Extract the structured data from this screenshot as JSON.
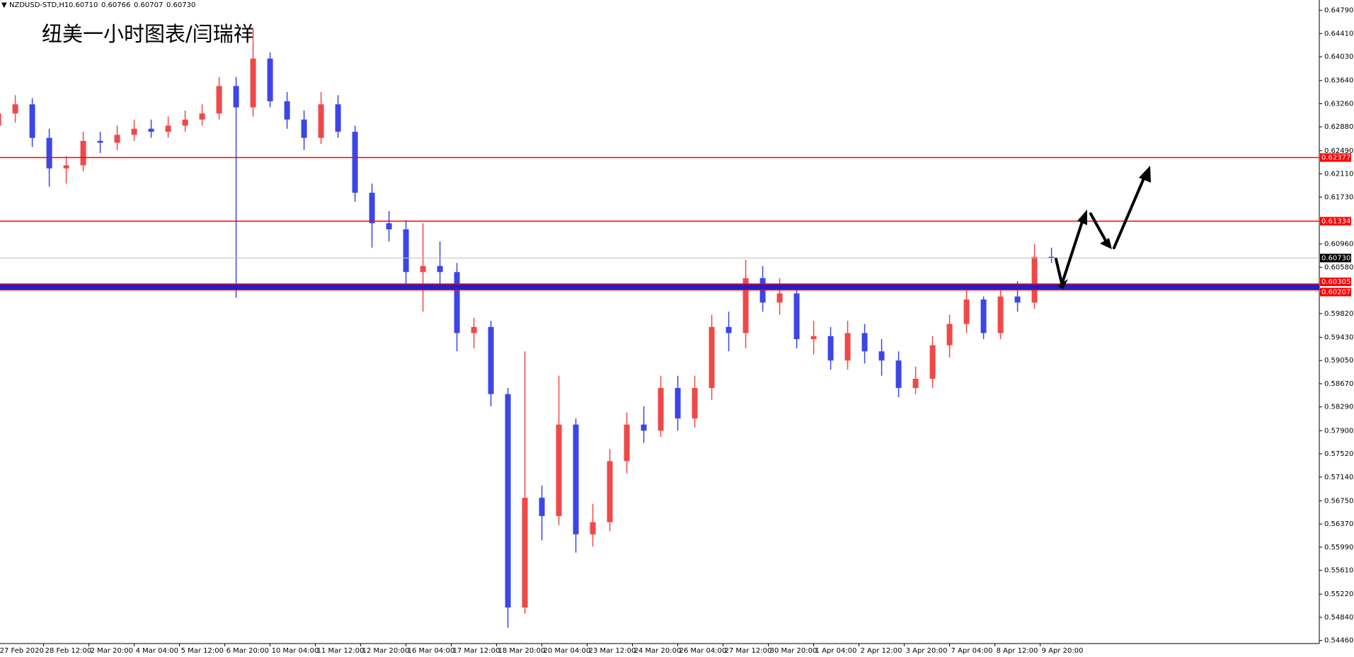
{
  "chart_data": {
    "type": "candlestick",
    "title": "纽美一小时图表/闫瑞祥",
    "symbol": "NZDUSD-STD,H1",
    "quote": [
      "0.60710",
      "0.60766",
      "0.60707",
      "0.60730"
    ],
    "up_color": "#f04848",
    "down_color": "#3c46e6",
    "xlim": [
      1.2,
      933.2
    ],
    "ylim": [
      0.5441,
      0.6496
    ],
    "x": [
      0,
      12,
      24,
      36,
      48,
      60,
      72,
      84,
      96,
      108,
      120,
      132,
      144,
      156,
      168,
      180,
      192,
      204,
      216,
      228,
      240,
      252,
      264,
      276,
      288,
      300,
      312,
      324,
      336,
      348,
      360,
      372,
      384,
      396,
      408,
      420,
      432,
      444,
      456,
      468,
      480,
      492,
      504,
      516,
      528,
      540,
      552,
      564,
      576,
      588,
      600,
      612,
      624,
      636,
      648,
      660,
      672,
      684,
      696,
      708,
      720,
      732,
      744
    ],
    "open": [
      0.629,
      0.631,
      0.6325,
      0.627,
      0.622,
      0.6225,
      0.6265,
      0.6262,
      0.6275,
      0.6285,
      0.628,
      0.629,
      0.63,
      0.631,
      0.6355,
      0.632,
      0.64,
      0.633,
      0.63,
      0.627,
      0.6325,
      0.628,
      0.618,
      0.613,
      0.612,
      0.605,
      0.606,
      0.605,
      0.595,
      0.596,
      0.585,
      0.55,
      0.568,
      0.565,
      0.58,
      0.562,
      0.564,
      0.574,
      0.58,
      0.579,
      0.586,
      0.581,
      0.586,
      0.596,
      0.595,
      0.604,
      0.6,
      0.6015,
      0.594,
      0.5945,
      0.5905,
      0.595,
      0.592,
      0.5905,
      0.586,
      0.5875,
      0.593,
      0.5965,
      0.6005,
      0.595,
      0.601,
      0.6,
      0.6075
    ],
    "high": [
      0.633,
      0.634,
      0.6335,
      0.6285,
      0.624,
      0.628,
      0.628,
      0.629,
      0.63,
      0.63,
      0.6305,
      0.6315,
      0.6325,
      0.637,
      0.637,
      0.645,
      0.641,
      0.6345,
      0.6315,
      0.6345,
      0.634,
      0.629,
      0.6195,
      0.615,
      0.6135,
      0.613,
      0.61,
      0.6065,
      0.5975,
      0.597,
      0.586,
      0.592,
      0.57,
      0.588,
      0.581,
      0.567,
      0.576,
      0.582,
      0.583,
      0.588,
      0.588,
      0.588,
      0.598,
      0.5985,
      0.607,
      0.606,
      0.604,
      0.603,
      0.597,
      0.596,
      0.597,
      0.5965,
      0.594,
      0.592,
      0.5895,
      0.5945,
      0.598,
      0.602,
      0.601,
      0.603,
      0.6035,
      0.6096,
      0.609
    ],
    "low": [
      0.6275,
      0.6295,
      0.6255,
      0.619,
      0.6195,
      0.6215,
      0.6245,
      0.625,
      0.6265,
      0.627,
      0.627,
      0.628,
      0.629,
      0.63,
      0.6008,
      0.6305,
      0.632,
      0.6285,
      0.625,
      0.626,
      0.627,
      0.6165,
      0.609,
      0.61,
      0.603,
      0.5985,
      0.602,
      0.592,
      0.5925,
      0.583,
      0.5467,
      0.549,
      0.561,
      0.5635,
      0.559,
      0.56,
      0.5625,
      0.572,
      0.577,
      0.578,
      0.579,
      0.5795,
      0.584,
      0.592,
      0.5925,
      0.5985,
      0.598,
      0.5925,
      0.5915,
      0.589,
      0.589,
      0.59,
      0.588,
      0.5845,
      0.585,
      0.586,
      0.591,
      0.595,
      0.594,
      0.594,
      0.5985,
      0.599,
      0.6065
    ],
    "close": [
      0.631,
      0.6325,
      0.627,
      0.622,
      0.6225,
      0.6265,
      0.6262,
      0.6275,
      0.6285,
      0.628,
      0.629,
      0.63,
      0.631,
      0.6355,
      0.632,
      0.64,
      0.633,
      0.63,
      0.627,
      0.6325,
      0.628,
      0.618,
      0.613,
      0.612,
      0.605,
      0.606,
      0.605,
      0.595,
      0.596,
      0.585,
      0.55,
      0.568,
      0.565,
      0.58,
      0.562,
      0.564,
      0.574,
      0.58,
      0.579,
      0.586,
      0.581,
      0.586,
      0.596,
      0.595,
      0.604,
      0.6,
      0.6015,
      0.594,
      0.5945,
      0.5905,
      0.595,
      0.592,
      0.5905,
      0.586,
      0.5875,
      0.593,
      0.5965,
      0.6005,
      0.595,
      0.601,
      0.6,
      0.6075,
      0.6073
    ],
    "xticks": [
      {
        "value": 0,
        "label": "27 Feb 2020"
      },
      {
        "value": 32,
        "label": "28 Feb 12:00"
      },
      {
        "value": 64,
        "label": "2 Mar 20:00"
      },
      {
        "value": 96,
        "label": "4 Mar 04:00"
      },
      {
        "value": 128,
        "label": "5 Mar 12:00"
      },
      {
        "value": 160,
        "label": "6 Mar 20:00"
      },
      {
        "value": 192,
        "label": "10 Mar 04:00"
      },
      {
        "value": 224,
        "label": "11 Mar 12:00"
      },
      {
        "value": 256,
        "label": "12 Mar 20:00"
      },
      {
        "value": 288,
        "label": "16 Mar 04:00"
      },
      {
        "value": 320,
        "label": "17 Mar 12:00"
      },
      {
        "value": 352,
        "label": "18 Mar 20:00"
      },
      {
        "value": 384,
        "label": "20 Mar 04:00"
      },
      {
        "value": 416,
        "label": "23 Mar 12:00"
      },
      {
        "value": 448,
        "label": "24 Mar 20:00"
      },
      {
        "value": 480,
        "label": "26 Mar 04:00"
      },
      {
        "value": 512,
        "label": "27 Mar 12:00"
      },
      {
        "value": 544,
        "label": "30 Mar 20:00"
      },
      {
        "value": 576,
        "label": "1 Apr 04:00"
      },
      {
        "value": 608,
        "label": "2 Apr 12:00"
      },
      {
        "value": 640,
        "label": "3 Apr 20:00"
      },
      {
        "value": 672,
        "label": "7 Apr 04:00"
      },
      {
        "value": 704,
        "label": "8 Apr 12:00"
      },
      {
        "value": 736,
        "label": "9 Apr 20:00"
      }
    ],
    "yticks": [
      {
        "value": 0.6479,
        "label": "0.64790"
      },
      {
        "value": 0.6441,
        "label": "0.64410"
      },
      {
        "value": 0.6403,
        "label": "0.64030"
      },
      {
        "value": 0.6364,
        "label": "0.63640"
      },
      {
        "value": 0.6326,
        "label": "0.63260"
      },
      {
        "value": 0.6288,
        "label": "0.62880"
      },
      {
        "value": 0.6249,
        "label": "0.62490"
      },
      {
        "value": 0.6211,
        "label": "0.62110"
      },
      {
        "value": 0.6173,
        "label": "0.61730"
      },
      {
        "value": 0.6096,
        "label": "0.60960"
      },
      {
        "value": 0.6058,
        "label": "0.60580"
      },
      {
        "value": 0.5982,
        "label": "0.59820"
      },
      {
        "value": 0.5943,
        "label": "0.59430"
      },
      {
        "value": 0.5905,
        "label": "0.59050"
      },
      {
        "value": 0.5867,
        "label": "0.58670"
      },
      {
        "value": 0.5829,
        "label": "0.58290"
      },
      {
        "value": 0.579,
        "label": "0.57900"
      },
      {
        "value": 0.5752,
        "label": "0.57520"
      },
      {
        "value": 0.5714,
        "label": "0.57140"
      },
      {
        "value": 0.5675,
        "label": "0.56750"
      },
      {
        "value": 0.5637,
        "label": "0.56370"
      },
      {
        "value": 0.5599,
        "label": "0.55990"
      },
      {
        "value": 0.5561,
        "label": "0.55610"
      },
      {
        "value": 0.5522,
        "label": "0.55220"
      },
      {
        "value": 0.5484,
        "label": "0.54840"
      },
      {
        "value": 0.5446,
        "label": "0.54460"
      }
    ],
    "resistance_levels": [
      0.62377,
      0.61334
    ],
    "level_color": "#ff0000",
    "current_price": {
      "value": 0.6073,
      "label": "0.60730"
    },
    "support_band": [
      0.60305,
      0.60207
    ],
    "band_color": "#1f1fd0"
  }
}
